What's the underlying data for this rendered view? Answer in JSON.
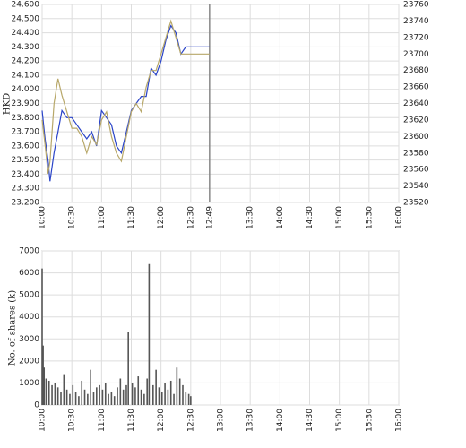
{
  "chart_data": [
    {
      "type": "line",
      "y_label": "HKD",
      "x": [
        600,
        603,
        606,
        608,
        612,
        616,
        620,
        625,
        630,
        635,
        640,
        645,
        650,
        655,
        660,
        665,
        670,
        675,
        680,
        685,
        690,
        695,
        700,
        705,
        710,
        715,
        720,
        725,
        730,
        735,
        740,
        745,
        750,
        769
      ],
      "series": [
        {
          "color": "#2a44c8",
          "values": [
            23.85,
            23.65,
            23.5,
            23.35,
            23.55,
            23.7,
            23.85,
            23.8,
            23.8,
            23.75,
            23.7,
            23.65,
            23.7,
            23.6,
            23.85,
            23.8,
            23.75,
            23.6,
            23.55,
            23.7,
            23.85,
            23.9,
            23.95,
            23.95,
            24.15,
            24.1,
            24.2,
            24.35,
            24.45,
            24.4,
            24.25,
            24.3,
            24.3,
            24.3
          ]
        },
        {
          "color": "#b8a86a",
          "axis": "y2",
          "values": [
            23620,
            23590,
            23555,
            23570,
            23640,
            23670,
            23650,
            23630,
            23610,
            23610,
            23600,
            23580,
            23600,
            23590,
            23620,
            23630,
            23600,
            23580,
            23570,
            23600,
            23630,
            23640,
            23630,
            23660,
            23680,
            23680,
            23700,
            23720,
            23740,
            23720,
            23700,
            23700,
            23700,
            23700
          ]
        }
      ],
      "xlim": [
        600,
        960
      ],
      "xticks": [
        {
          "value": 600,
          "label": "10:00"
        },
        {
          "value": 630,
          "label": "10:30"
        },
        {
          "value": 660,
          "label": "11:00"
        },
        {
          "value": 690,
          "label": "11:30"
        },
        {
          "value": 720,
          "label": "12:00"
        },
        {
          "value": 750,
          "label": "12:30"
        },
        {
          "value": 769,
          "label": "12:49"
        },
        {
          "value": 810,
          "label": "13:30"
        },
        {
          "value": 840,
          "label": "14:00"
        },
        {
          "value": 870,
          "label": "14:30"
        },
        {
          "value": 900,
          "label": "15:00"
        },
        {
          "value": 930,
          "label": "15:30"
        },
        {
          "value": 960,
          "label": "16:00"
        }
      ],
      "ylim": [
        23.2,
        24.6
      ],
      "yticks": [
        {
          "value": 23.2,
          "label": "23.200"
        },
        {
          "value": 23.3,
          "label": "23.300"
        },
        {
          "value": 23.4,
          "label": "23.400"
        },
        {
          "value": 23.5,
          "label": "23.500"
        },
        {
          "value": 23.6,
          "label": "23.600"
        },
        {
          "value": 23.7,
          "label": "23.700"
        },
        {
          "value": 23.8,
          "label": "23.800"
        },
        {
          "value": 23.9,
          "label": "23.900"
        },
        {
          "value": 24.0,
          "label": "24.000"
        },
        {
          "value": 24.1,
          "label": "24.100"
        },
        {
          "value": 24.2,
          "label": "24.200"
        },
        {
          "value": 24.3,
          "label": "24.300"
        },
        {
          "value": 24.4,
          "label": "24.400"
        },
        {
          "value": 24.5,
          "label": "24.500"
        },
        {
          "value": 24.6,
          "label": "24.600"
        }
      ],
      "y2lim": [
        23520,
        23760
      ],
      "y2ticks": [
        23520,
        23540,
        23560,
        23580,
        23600,
        23620,
        23640,
        23660,
        23680,
        23700,
        23720,
        23740,
        23760
      ],
      "grid": true
    },
    {
      "type": "bar",
      "y_label": "No. of shares (k)",
      "color": "#555555",
      "x": [
        600,
        601,
        602,
        604,
        607,
        610,
        613,
        616,
        619,
        622,
        625,
        628,
        631,
        634,
        637,
        640,
        643,
        646,
        649,
        652,
        655,
        658,
        661,
        664,
        667,
        670,
        673,
        676,
        679,
        682,
        685,
        687,
        691,
        694,
        697,
        700,
        703,
        706,
        708,
        712,
        715,
        718,
        721,
        724,
        727,
        730,
        733,
        736,
        739,
        742,
        745,
        748,
        750
      ],
      "values": [
        6200,
        2700,
        1700,
        1200,
        1100,
        900,
        1000,
        800,
        600,
        1400,
        700,
        500,
        900,
        600,
        400,
        1100,
        700,
        500,
        1600,
        600,
        800,
        900,
        700,
        1000,
        500,
        600,
        400,
        800,
        1200,
        700,
        900,
        3300,
        1000,
        800,
        1300,
        700,
        500,
        1200,
        6400,
        900,
        1600,
        800,
        600,
        1000,
        700,
        1100,
        500,
        1700,
        1200,
        900,
        600,
        500,
        400
      ],
      "xlim": [
        600,
        960
      ],
      "xticks": [
        {
          "value": 600,
          "label": "10:00"
        },
        {
          "value": 630,
          "label": "10:30"
        },
        {
          "value": 660,
          "label": "11:00"
        },
        {
          "value": 690,
          "label": "11:30"
        },
        {
          "value": 720,
          "label": "12:00"
        },
        {
          "value": 750,
          "label": "12:30"
        },
        {
          "value": 780,
          "label": "13:00"
        },
        {
          "value": 810,
          "label": "13:30"
        },
        {
          "value": 840,
          "label": "14:00"
        },
        {
          "value": 870,
          "label": "14:30"
        },
        {
          "value": 900,
          "label": "15:00"
        },
        {
          "value": 930,
          "label": "15:30"
        },
        {
          "value": 960,
          "label": "16:00"
        }
      ],
      "ylim": [
        0,
        7000
      ],
      "yticks": [
        0,
        1000,
        2000,
        3000,
        4000,
        5000,
        6000,
        7000
      ],
      "grid": true
    }
  ]
}
